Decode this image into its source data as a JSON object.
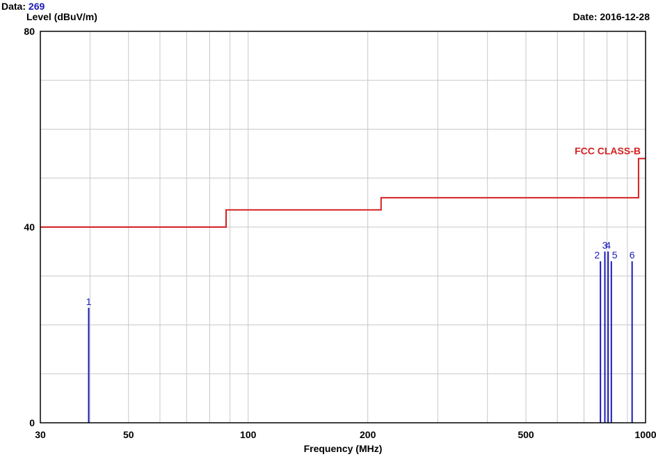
{
  "header": {
    "data_label": "Data:",
    "data_value": "269",
    "date_text": "Date: 2016-12-28"
  },
  "colors": {
    "limit_line": "#d42020",
    "markers": "#1a1ab4",
    "grid": "#c8c8c8",
    "axes": "#000000"
  },
  "chart_data": {
    "type": "line",
    "ylabel": "Level (dBuV/m)",
    "xlabel": "Frequency (MHz)",
    "xscale": "log",
    "xlim": [
      30,
      1000
    ],
    "ylim": [
      0,
      80
    ],
    "x_ticks": [
      30,
      50,
      100,
      200,
      500,
      1000
    ],
    "x_grid": [
      30,
      40,
      50,
      60,
      70,
      80,
      90,
      100,
      200,
      300,
      400,
      500,
      600,
      700,
      800,
      900,
      1000
    ],
    "y_ticks": [
      0,
      40,
      80
    ],
    "y_grid": [
      0,
      10,
      20,
      30,
      40,
      50,
      60,
      70,
      80
    ],
    "grid": true,
    "limit_line": {
      "name": "FCC CLASS-B",
      "points": [
        [
          30,
          40
        ],
        [
          88,
          40
        ],
        [
          88,
          43.5
        ],
        [
          216,
          43.5
        ],
        [
          216,
          46
        ],
        [
          960,
          46
        ],
        [
          960,
          54
        ],
        [
          1000,
          54
        ]
      ]
    },
    "markers": [
      {
        "label": "1",
        "freq": 39.7,
        "level": 23.5
      },
      {
        "label": "2",
        "freq": 770,
        "level": 33
      },
      {
        "label": "3",
        "freq": 790,
        "level": 35
      },
      {
        "label": "4",
        "freq": 805,
        "level": 35
      },
      {
        "label": "5",
        "freq": 820,
        "level": 33
      },
      {
        "label": "6",
        "freq": 925,
        "level": 33
      }
    ]
  }
}
